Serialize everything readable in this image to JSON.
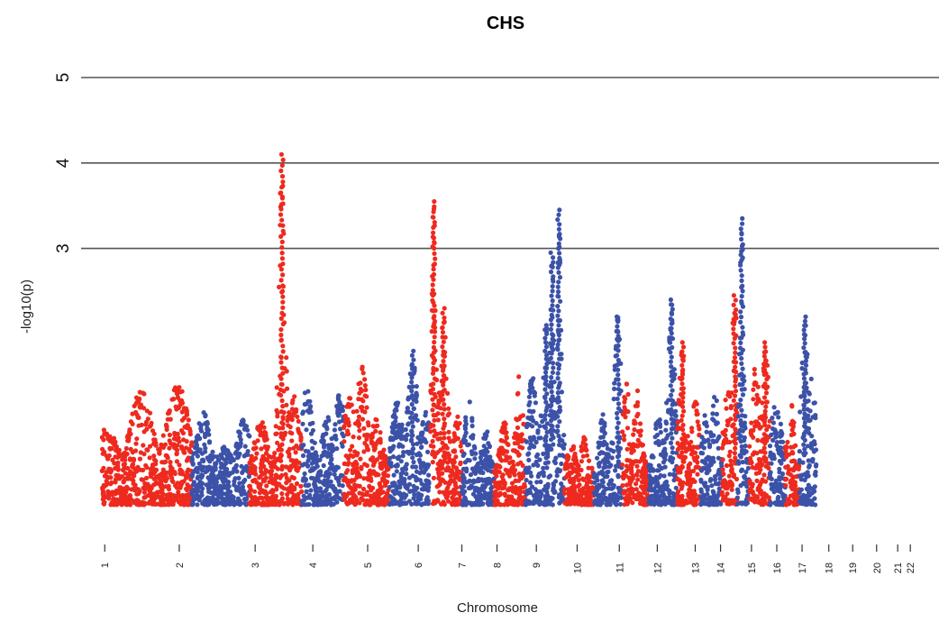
{
  "chart_data": {
    "type": "scatter",
    "title": "CHS",
    "xlabel": "Chromosome",
    "ylabel": "-log10(p)",
    "ylim": [
      0,
      5
    ],
    "yticks": [
      3,
      4,
      5
    ],
    "grid": "horizontal reference lines at y = 3, 4, 5",
    "legend": "none",
    "colors": [
      "#ee2a1f",
      "#3c52a8"
    ],
    "chromosomes": [
      "1",
      "2",
      "3",
      "4",
      "5",
      "6",
      "7",
      "8",
      "9",
      "10",
      "11",
      "12",
      "13",
      "14",
      "15",
      "16",
      "17",
      "18",
      "19",
      "20",
      "21",
      "22"
    ],
    "segments": [
      {
        "start": 0.0,
        "end": 6.4,
        "color": "#ee2a1f",
        "base": 0.45,
        "peaks": [
          [
            0.3,
            0.9
          ],
          [
            2.8,
            1.35
          ],
          [
            5.4,
            1.45
          ],
          [
            6.2,
            0.85
          ]
        ]
      },
      {
        "start": 6.4,
        "end": 10.5,
        "color": "#3c52a8",
        "base": 0.4,
        "peaks": [
          [
            7.2,
            1.1
          ],
          [
            8.7,
            0.7
          ],
          [
            10.1,
            1.05
          ]
        ]
      },
      {
        "start": 10.5,
        "end": 14.2,
        "color": "#ee2a1f",
        "base": 0.45,
        "peaks": [
          [
            11.3,
            1.0
          ],
          [
            12.8,
            4.1
          ],
          [
            13.6,
            1.3
          ]
        ]
      },
      {
        "start": 14.2,
        "end": 17.2,
        "color": "#3c52a8",
        "base": 0.45,
        "peaks": [
          [
            14.6,
            1.45
          ],
          [
            16.0,
            1.05
          ],
          [
            16.9,
            1.3
          ]
        ]
      },
      {
        "start": 17.2,
        "end": 20.4,
        "color": "#ee2a1f",
        "base": 0.5,
        "peaks": [
          [
            17.6,
            1.35
          ],
          [
            18.5,
            1.65
          ],
          [
            19.5,
            1.0
          ]
        ]
      },
      {
        "start": 20.4,
        "end": 23.3,
        "color": "#3c52a8",
        "base": 0.5,
        "peaks": [
          [
            21.0,
            1.3
          ],
          [
            22.1,
            1.8
          ],
          [
            23.0,
            1.1
          ]
        ]
      },
      {
        "start": 23.3,
        "end": 25.6,
        "color": "#ee2a1f",
        "base": 0.5,
        "peaks": [
          [
            23.6,
            3.55
          ],
          [
            24.3,
            2.3
          ],
          [
            25.3,
            1.05
          ]
        ]
      },
      {
        "start": 25.6,
        "end": 27.9,
        "color": "#3c52a8",
        "base": 0.45,
        "peaks": [
          [
            26.1,
            1.3
          ],
          [
            27.3,
            0.9
          ]
        ]
      },
      {
        "start": 27.9,
        "end": 30.1,
        "color": "#ee2a1f",
        "base": 0.45,
        "peaks": [
          [
            28.6,
            1.0
          ],
          [
            29.7,
            1.6
          ]
        ]
      },
      {
        "start": 30.1,
        "end": 32.3,
        "color": "#3c52a8",
        "base": 0.65,
        "peaks": [
          [
            30.6,
            1.55
          ],
          [
            31.6,
            2.1
          ],
          [
            32.0,
            2.95
          ]
        ]
      },
      {
        "start": 32.3,
        "end": 32.9,
        "color": "#3c52a8",
        "base": 0.75,
        "peaks": [
          [
            32.5,
            3.45
          ]
        ]
      },
      {
        "start": 32.9,
        "end": 35.0,
        "color": "#ee2a1f",
        "base": 0.4,
        "peaks": [
          [
            33.4,
            0.75
          ],
          [
            34.3,
            0.8
          ]
        ]
      },
      {
        "start": 35.0,
        "end": 37.0,
        "color": "#3c52a8",
        "base": 0.45,
        "peaks": [
          [
            35.6,
            1.1
          ],
          [
            36.7,
            2.2
          ]
        ]
      },
      {
        "start": 37.0,
        "end": 38.9,
        "color": "#ee2a1f",
        "base": 0.45,
        "peaks": [
          [
            37.3,
            1.45
          ],
          [
            38.1,
            1.35
          ]
        ]
      },
      {
        "start": 38.9,
        "end": 40.9,
        "color": "#3c52a8",
        "base": 0.5,
        "peaks": [
          [
            39.6,
            1.1
          ],
          [
            40.5,
            2.4
          ]
        ]
      },
      {
        "start": 40.9,
        "end": 42.6,
        "color": "#ee2a1f",
        "base": 0.45,
        "peaks": [
          [
            41.3,
            1.9
          ],
          [
            42.2,
            1.3
          ]
        ]
      },
      {
        "start": 42.6,
        "end": 44.1,
        "color": "#3c52a8",
        "base": 0.4,
        "peaks": [
          [
            42.9,
            1.05
          ],
          [
            43.6,
            1.35
          ]
        ]
      },
      {
        "start": 44.1,
        "end": 45.2,
        "color": "#ee2a1f",
        "base": 0.55,
        "peaks": [
          [
            44.5,
            1.55
          ],
          [
            45.0,
            2.45
          ]
        ]
      },
      {
        "start": 45.2,
        "end": 46.0,
        "color": "#3c52a8",
        "base": 0.5,
        "peaks": [
          [
            45.5,
            3.35
          ]
        ]
      },
      {
        "start": 46.0,
        "end": 47.5,
        "color": "#ee2a1f",
        "base": 0.45,
        "peaks": [
          [
            46.5,
            1.65
          ],
          [
            47.2,
            1.9
          ]
        ]
      },
      {
        "start": 47.5,
        "end": 48.6,
        "color": "#3c52a8",
        "base": 0.45,
        "peaks": [
          [
            47.9,
            1.35
          ],
          [
            48.3,
            0.95
          ]
        ]
      },
      {
        "start": 48.6,
        "end": 49.6,
        "color": "#ee2a1f",
        "base": 0.45,
        "peaks": [
          [
            49.0,
            1.2
          ]
        ]
      },
      {
        "start": 49.6,
        "end": 50.8,
        "color": "#3c52a8",
        "base": 0.6,
        "peaks": [
          [
            50.0,
            2.2
          ],
          [
            50.5,
            1.5
          ]
        ]
      }
    ],
    "chrom_tick_positions": [
      0.2,
      5.5,
      10.9,
      15.0,
      18.9,
      22.5,
      25.6,
      28.1,
      30.9,
      33.8,
      36.8,
      39.5,
      42.2,
      44.0,
      46.2,
      48.0,
      49.8,
      51.7,
      53.4,
      55.1,
      56.6,
      57.5
    ],
    "x_range": [
      -0.2,
      58.0
    ]
  }
}
